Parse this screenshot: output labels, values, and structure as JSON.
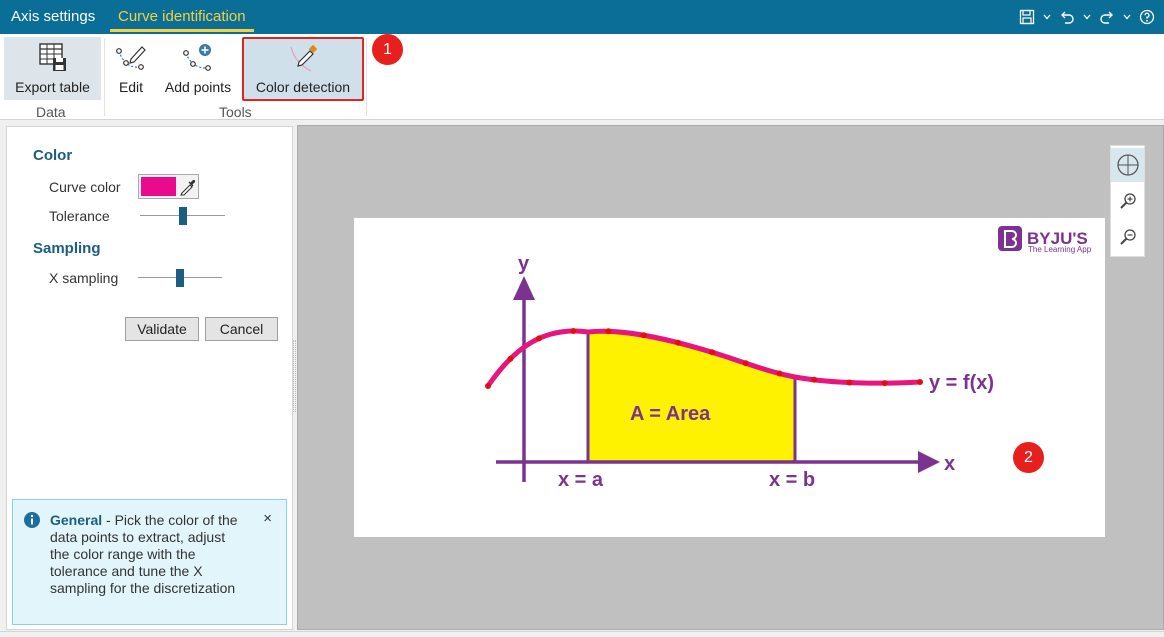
{
  "topbar": {
    "tabs": [
      {
        "label": "Axis settings",
        "active": false
      },
      {
        "label": "Curve identification",
        "active": true
      }
    ],
    "icons": [
      "save-icon",
      "undo-icon",
      "redo-icon",
      "help-icon"
    ]
  },
  "ribbon": {
    "buttons": [
      {
        "label": "Export table",
        "icon": "export-table-icon"
      },
      {
        "label": "Edit",
        "icon": "edit-curve-icon"
      },
      {
        "label": "Add points",
        "icon": "add-points-icon"
      },
      {
        "label": "Color detection",
        "icon": "color-detection-icon",
        "selected": true
      }
    ],
    "groups": [
      "Data",
      "Tools"
    ]
  },
  "annotations": {
    "badge1": "1",
    "badge2": "2"
  },
  "panel": {
    "color_section": "Color",
    "curve_color_label": "Curve color",
    "curve_color": "#ea0a8e",
    "tolerance_label": "Tolerance",
    "tolerance_value": 0.5,
    "sampling_section": "Sampling",
    "x_sampling_label": "X sampling",
    "x_sampling_value": 0.5,
    "validate_label": "Validate",
    "cancel_label": "Cancel",
    "info": {
      "title": "General",
      "text": " - Pick the color of the data points to extract, adjust the color range with the tolerance and tune the X sampling for the discretization",
      "close": "×"
    }
  },
  "figure": {
    "logo_main": "BYJU'S",
    "logo_sub": "The Learning App",
    "y_axis": "y",
    "x_axis": "x",
    "curve_label": "y = f(x)",
    "area_label": "A = Area",
    "a_label": "x = a",
    "b_label": "x = b",
    "curve_color": "#e8157e",
    "area_color": "#fff200",
    "axis_color": "#7b3290",
    "point_color": "#e01010"
  },
  "colors": {
    "accent": "#0a6e96",
    "active_tab": "#f5d042",
    "highlight": "#e02424"
  }
}
